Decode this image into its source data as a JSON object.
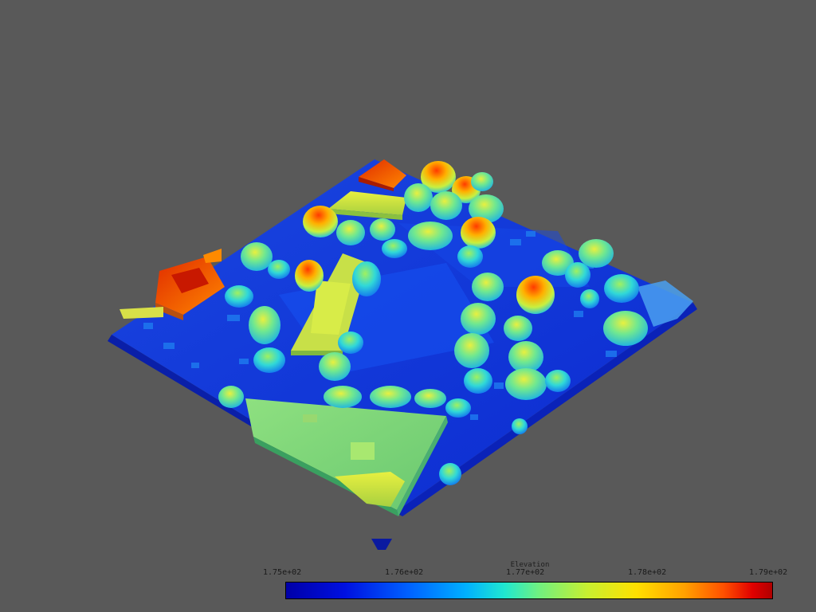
{
  "scene": {
    "background": "#595959",
    "colormap": "jet",
    "description_colors": {
      "low": "#0000a8",
      "mid": "#70f080",
      "high": "#d00000"
    }
  },
  "scalar_bar": {
    "title": "Elevation",
    "ticks": [
      "1.75e+02",
      "1.76e+02",
      "1.77e+02",
      "1.78e+02",
      "1.79e+02"
    ]
  }
}
